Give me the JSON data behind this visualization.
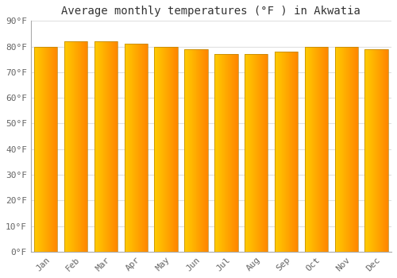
{
  "title": "Average monthly temperatures (°F ) in Akwatia",
  "months": [
    "Jan",
    "Feb",
    "Mar",
    "Apr",
    "May",
    "Jun",
    "Jul",
    "Aug",
    "Sep",
    "Oct",
    "Nov",
    "Dec"
  ],
  "values": [
    80,
    82,
    82,
    81,
    80,
    79,
    77,
    77,
    78,
    80,
    80,
    79
  ],
  "bar_color_center": "#FFC107",
  "bar_edge_color": "#B8860B",
  "background_color": "#ffffff",
  "plot_bg_color": "#f5f5f5",
  "grid_color": "#e0e0e0",
  "ylim": [
    0,
    90
  ],
  "yticks": [
    0,
    10,
    20,
    30,
    40,
    50,
    60,
    70,
    80,
    90
  ],
  "title_fontsize": 10,
  "tick_fontsize": 8,
  "font_family": "monospace"
}
